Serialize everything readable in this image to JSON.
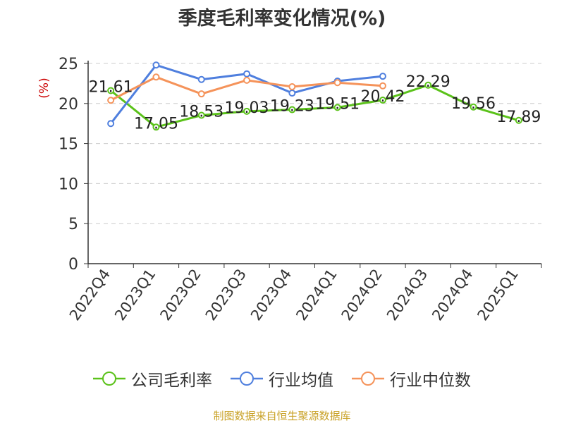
{
  "chart_data": {
    "type": "line",
    "title": "季度毛利率变化情况(%)",
    "ylabel": "(%)",
    "xlabel": "",
    "ylim": [
      0,
      25
    ],
    "yticks": [
      0,
      5,
      10,
      15,
      20,
      25
    ],
    "grid": true,
    "legend_position": "bottom",
    "categories": [
      "2022Q4",
      "2023Q1",
      "2023Q2",
      "2023Q3",
      "2023Q4",
      "2024Q1",
      "2024Q2",
      "2024Q3",
      "2024Q4",
      "2025Q1"
    ],
    "series": [
      {
        "name": "公司毛利率",
        "color": "#5bc21a",
        "values": [
          21.61,
          17.05,
          18.53,
          19.03,
          19.23,
          19.51,
          20.42,
          22.29,
          19.56,
          17.89
        ],
        "labels": [
          "21.61",
          "17.05",
          "18.53",
          "19.03",
          "19.23",
          "19.51",
          "20.42",
          "22.29",
          "19.56",
          "17.89"
        ]
      },
      {
        "name": "行业均值",
        "color": "#4f7fde",
        "values": [
          17.5,
          24.8,
          23.0,
          23.7,
          21.3,
          22.8,
          23.4,
          null,
          null,
          null
        ]
      },
      {
        "name": "行业中位数",
        "color": "#f5935a",
        "values": [
          20.4,
          23.3,
          21.2,
          22.9,
          22.1,
          22.6,
          22.2,
          null,
          null,
          null
        ]
      }
    ]
  },
  "source": "制图数据来自恒生聚源数据库",
  "colors": {
    "ylabel": "#cc0000",
    "source": "#c9a227",
    "axis": "#333333",
    "grid": "#cccccc"
  }
}
